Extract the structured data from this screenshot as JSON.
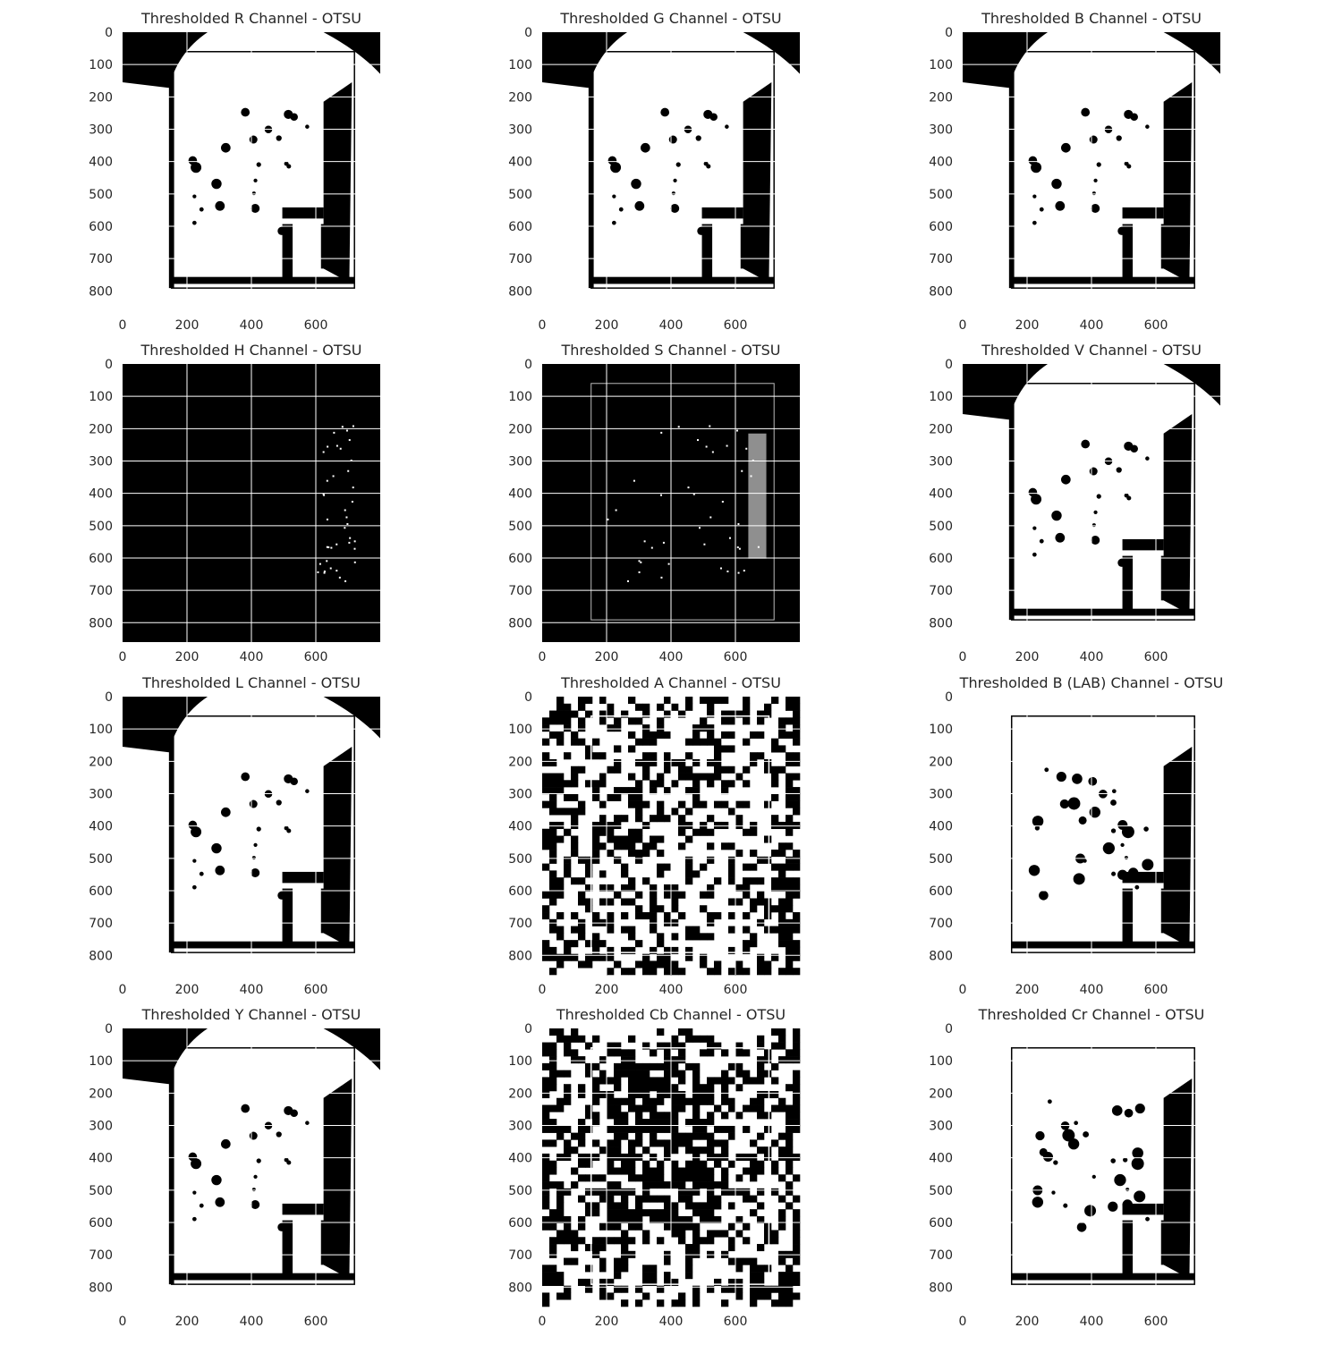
{
  "figure": {
    "background": "#ffffff",
    "text_color": "#262626",
    "grid_color": "#ffffff"
  },
  "chart_data": [
    {
      "type": "heatmap",
      "title": "Thresholded R Channel - OTSU",
      "channel": "R",
      "method": "OTSU",
      "colormap": "binary (black=0, white=255)",
      "xlim": [
        0,
        800
      ],
      "ylim": [
        860,
        0
      ],
      "xticks": [
        0,
        200,
        400,
        600
      ],
      "yticks": [
        0,
        100,
        200,
        300,
        400,
        500,
        600,
        700,
        800
      ],
      "grid": true
    },
    {
      "type": "heatmap",
      "title": "Thresholded G Channel - OTSU",
      "channel": "G",
      "method": "OTSU",
      "colormap": "binary (black=0, white=255)",
      "xlim": [
        0,
        800
      ],
      "ylim": [
        860,
        0
      ],
      "xticks": [
        0,
        200,
        400,
        600
      ],
      "yticks": [
        0,
        100,
        200,
        300,
        400,
        500,
        600,
        700,
        800
      ],
      "grid": true
    },
    {
      "type": "heatmap",
      "title": "Thresholded B Channel - OTSU",
      "channel": "B",
      "method": "OTSU",
      "colormap": "binary (black=0, white=255)",
      "xlim": [
        0,
        800
      ],
      "ylim": [
        860,
        0
      ],
      "xticks": [
        0,
        200,
        400,
        600
      ],
      "yticks": [
        0,
        100,
        200,
        300,
        400,
        500,
        600,
        700,
        800
      ],
      "grid": true
    },
    {
      "type": "heatmap",
      "title": "Thresholded H Channel - OTSU",
      "channel": "H",
      "method": "OTSU",
      "colormap": "binary (black=0, white=255)",
      "xlim": [
        0,
        800
      ],
      "ylim": [
        860,
        0
      ],
      "xticks": [
        0,
        200,
        400,
        600
      ],
      "yticks": [
        0,
        100,
        200,
        300,
        400,
        500,
        600,
        700,
        800
      ],
      "grid": true
    },
    {
      "type": "heatmap",
      "title": "Thresholded S Channel - OTSU",
      "channel": "S",
      "method": "OTSU",
      "colormap": "binary (black=0, white=255)",
      "xlim": [
        0,
        800
      ],
      "ylim": [
        860,
        0
      ],
      "xticks": [
        0,
        200,
        400,
        600
      ],
      "yticks": [
        0,
        100,
        200,
        300,
        400,
        500,
        600,
        700,
        800
      ],
      "grid": true
    },
    {
      "type": "heatmap",
      "title": "Thresholded V Channel - OTSU",
      "channel": "V",
      "method": "OTSU",
      "colormap": "binary (black=0, white=255)",
      "xlim": [
        0,
        800
      ],
      "ylim": [
        860,
        0
      ],
      "xticks": [
        0,
        200,
        400,
        600
      ],
      "yticks": [
        0,
        100,
        200,
        300,
        400,
        500,
        600,
        700,
        800
      ],
      "grid": true
    },
    {
      "type": "heatmap",
      "title": "Thresholded L Channel - OTSU",
      "channel": "L",
      "method": "OTSU",
      "colormap": "binary (black=0, white=255)",
      "xlim": [
        0,
        800
      ],
      "ylim": [
        860,
        0
      ],
      "xticks": [
        0,
        200,
        400,
        600
      ],
      "yticks": [
        0,
        100,
        200,
        300,
        400,
        500,
        600,
        700,
        800
      ],
      "grid": true
    },
    {
      "type": "heatmap",
      "title": "Thresholded A Channel - OTSU",
      "channel": "A",
      "method": "OTSU",
      "colormap": "binary (black=0, white=255)",
      "xlim": [
        0,
        800
      ],
      "ylim": [
        860,
        0
      ],
      "xticks": [
        0,
        200,
        400,
        600
      ],
      "yticks": [
        0,
        100,
        200,
        300,
        400,
        500,
        600,
        700,
        800
      ],
      "grid": true
    },
    {
      "type": "heatmap",
      "title": "Thresholded B (LAB) Channel - OTSU",
      "channel": "B (LAB)",
      "method": "OTSU",
      "colormap": "binary (black=0, white=255)",
      "xlim": [
        0,
        800
      ],
      "ylim": [
        860,
        0
      ],
      "xticks": [
        0,
        200,
        400,
        600
      ],
      "yticks": [
        0,
        100,
        200,
        300,
        400,
        500,
        600,
        700,
        800
      ],
      "grid": true
    },
    {
      "type": "heatmap",
      "title": "Thresholded Y Channel - OTSU",
      "channel": "Y",
      "method": "OTSU",
      "colormap": "binary (black=0, white=255)",
      "xlim": [
        0,
        800
      ],
      "ylim": [
        860,
        0
      ],
      "xticks": [
        0,
        200,
        400,
        600
      ],
      "yticks": [
        0,
        100,
        200,
        300,
        400,
        500,
        600,
        700,
        800
      ],
      "grid": true
    },
    {
      "type": "heatmap",
      "title": "Thresholded Cb Channel - OTSU",
      "channel": "Cb",
      "method": "OTSU",
      "colormap": "binary (black=0, white=255)",
      "xlim": [
        0,
        800
      ],
      "ylim": [
        860,
        0
      ],
      "xticks": [
        0,
        200,
        400,
        600
      ],
      "yticks": [
        0,
        100,
        200,
        300,
        400,
        500,
        600,
        700,
        800
      ],
      "grid": true
    },
    {
      "type": "heatmap",
      "title": "Thresholded Cr Channel - OTSU",
      "channel": "Cr",
      "method": "OTSU",
      "colormap": "binary (black=0, white=255)",
      "xlim": [
        0,
        800
      ],
      "ylim": [
        860,
        0
      ],
      "xticks": [
        0,
        200,
        400,
        600
      ],
      "yticks": [
        0,
        100,
        200,
        300,
        400,
        500,
        600,
        700,
        800
      ],
      "grid": true
    }
  ]
}
